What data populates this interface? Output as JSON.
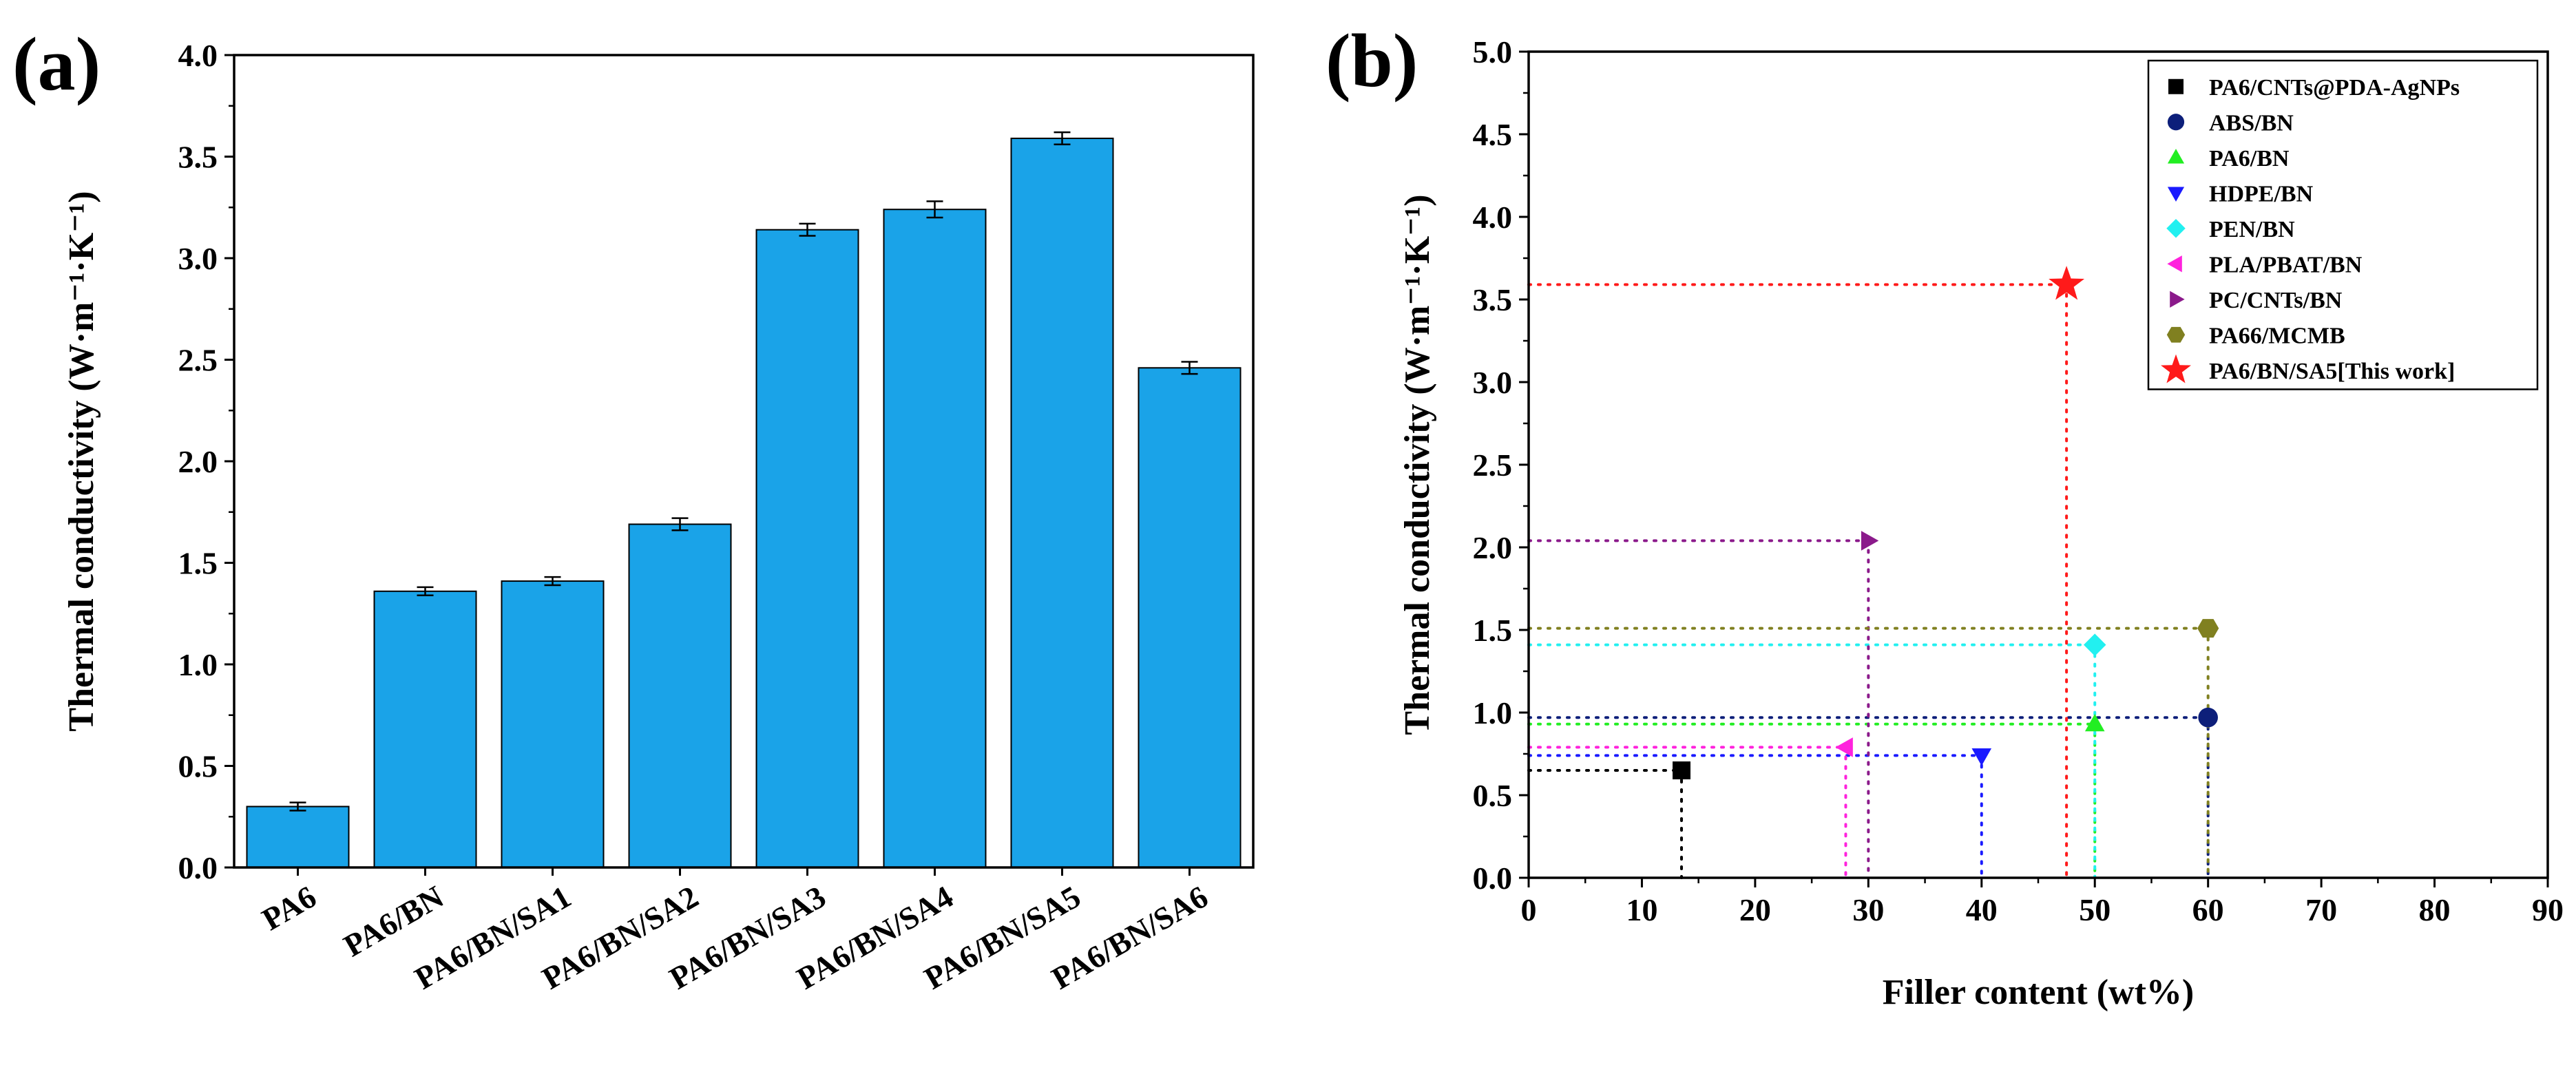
{
  "chart_data": [
    {
      "panel": "(a)",
      "type": "bar",
      "title": "",
      "xlabel": "",
      "ylabel": "Thermal conductivity (W·m⁻¹·K⁻¹)",
      "ylim": [
        0,
        4.0
      ],
      "yticks": [
        "0.0",
        "0.5",
        "1.0",
        "1.5",
        "2.0",
        "2.5",
        "3.0",
        "3.5",
        "4.0"
      ],
      "categories": [
        "PA6",
        "PA6/BN",
        "PA6/BN/SA1",
        "PA6/BN/SA2",
        "PA6/BN/SA3",
        "PA6/BN/SA4",
        "PA6/BN/SA5",
        "PA6/BN/SA6"
      ],
      "values": [
        0.3,
        1.36,
        1.41,
        1.69,
        3.14,
        3.24,
        3.59,
        2.46
      ],
      "errors": [
        0.02,
        0.02,
        0.02,
        0.03,
        0.03,
        0.04,
        0.03,
        0.03
      ],
      "bar_color": "#1aa3e8",
      "grid": false
    },
    {
      "panel": "(b)",
      "type": "scatter",
      "title": "",
      "xlabel": "Filler content (wt%)",
      "ylabel": "Thermal conductivity (W·m⁻¹·K⁻¹)",
      "xlim": [
        0,
        90
      ],
      "ylim": [
        0,
        5.0
      ],
      "xticks": [
        "0",
        "10",
        "20",
        "30",
        "40",
        "50",
        "60",
        "70",
        "80",
        "90"
      ],
      "yticks": [
        "0.0",
        "0.5",
        "1.0",
        "1.5",
        "2.0",
        "2.5",
        "3.0",
        "3.5",
        "4.0",
        "4.5",
        "5.0"
      ],
      "legend_position": "top-right",
      "grid": false,
      "series": [
        {
          "name": "PA6/CNTs@PDA-AgNPs",
          "x": 13.5,
          "y": 0.65,
          "marker": "square",
          "color": "#000000"
        },
        {
          "name": "ABS/BN",
          "x": 60,
          "y": 0.97,
          "marker": "circle",
          "color": "#0d1f7a"
        },
        {
          "name": "PA6/BN",
          "x": 50,
          "y": 0.93,
          "marker": "triangle-up",
          "color": "#22ee22"
        },
        {
          "name": "HDPE/BN",
          "x": 40,
          "y": 0.74,
          "marker": "triangle-down",
          "color": "#1a1aff"
        },
        {
          "name": "PEN/BN",
          "x": 50,
          "y": 1.41,
          "marker": "diamond",
          "color": "#22f0f0"
        },
        {
          "name": "PLA/PBAT/BN",
          "x": 28,
          "y": 0.79,
          "marker": "triangle-left",
          "color": "#ff22dd"
        },
        {
          "name": "PC/CNTs/BN",
          "x": 30,
          "y": 2.04,
          "marker": "triangle-right",
          "color": "#8b1a8b"
        },
        {
          "name": "PA66/MCMB",
          "x": 60,
          "y": 1.51,
          "marker": "hexagon",
          "color": "#808020"
        },
        {
          "name": "PA6/BN/SA5[This work]",
          "x": 47.5,
          "y": 3.59,
          "marker": "star",
          "color": "#ff1a1a"
        }
      ]
    }
  ]
}
